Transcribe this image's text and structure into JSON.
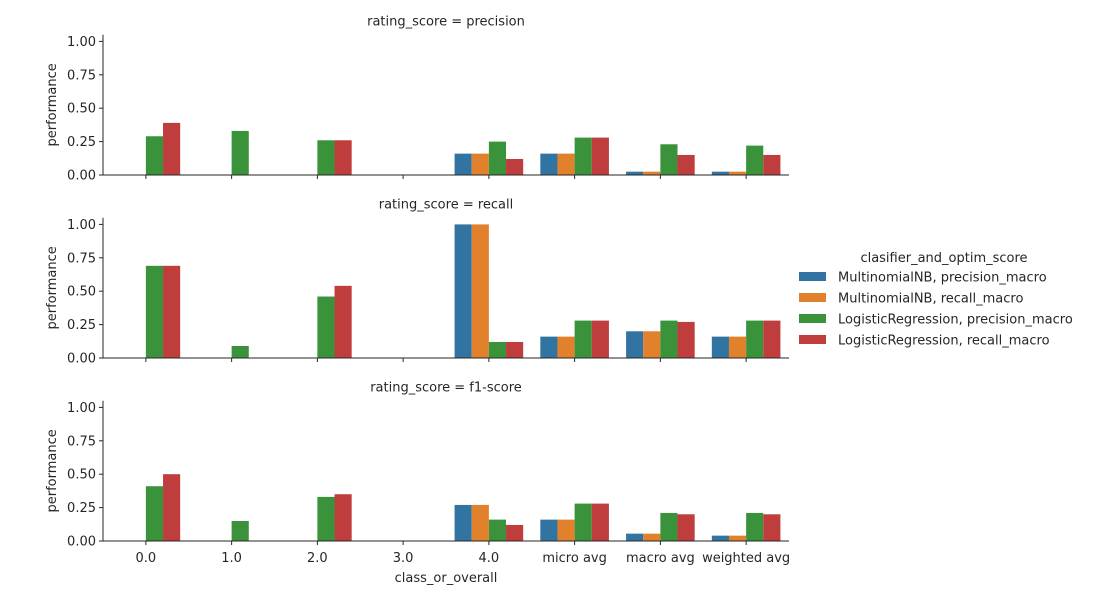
{
  "chart_data": [
    {
      "type": "bar",
      "title": "rating_score = precision",
      "ylabel": "performance",
      "ylim": [
        0,
        1.05
      ],
      "yticks": [
        "0.00",
        "0.25",
        "0.50",
        "0.75",
        "1.00"
      ],
      "series": [
        {
          "name": "MultinomialNB, precision_macro",
          "values": [
            0,
            0,
            0,
            0,
            0.16,
            0.16,
            0.025,
            0.025
          ]
        },
        {
          "name": "MultinomialNB, recall_macro",
          "values": [
            0,
            0,
            0,
            0,
            0.16,
            0.16,
            0.025,
            0.025
          ]
        },
        {
          "name": "LogisticRegression, precision_macro",
          "values": [
            0.29,
            0.33,
            0.26,
            0,
            0.25,
            0.28,
            0.23,
            0.22
          ]
        },
        {
          "name": "LogisticRegression, recall_macro",
          "values": [
            0.39,
            0,
            0.26,
            0,
            0.12,
            0.28,
            0.15,
            0.15
          ]
        }
      ]
    },
    {
      "type": "bar",
      "title": "rating_score = recall",
      "ylabel": "performance",
      "ylim": [
        0,
        1.05
      ],
      "yticks": [
        "0.00",
        "0.25",
        "0.50",
        "0.75",
        "1.00"
      ],
      "series": [
        {
          "name": "MultinomialNB, precision_macro",
          "values": [
            0,
            0,
            0,
            0,
            1.0,
            0.16,
            0.2,
            0.16
          ]
        },
        {
          "name": "MultinomialNB, recall_macro",
          "values": [
            0,
            0,
            0,
            0,
            1.0,
            0.16,
            0.2,
            0.16
          ]
        },
        {
          "name": "LogisticRegression, precision_macro",
          "values": [
            0.69,
            0.09,
            0.46,
            0,
            0.12,
            0.28,
            0.28,
            0.28
          ]
        },
        {
          "name": "LogisticRegression, recall_macro",
          "values": [
            0.69,
            0,
            0.54,
            0,
            0.12,
            0.28,
            0.27,
            0.28
          ]
        }
      ]
    },
    {
      "type": "bar",
      "title": "rating_score = f1-score",
      "ylabel": "performance",
      "xlabel": "class_or_overall",
      "ylim": [
        0,
        1.05
      ],
      "yticks": [
        "0.00",
        "0.25",
        "0.50",
        "0.75",
        "1.00"
      ],
      "categories": [
        "0.0",
        "1.0",
        "2.0",
        "3.0",
        "4.0",
        "micro avg",
        "macro avg",
        "weighted avg"
      ],
      "series": [
        {
          "name": "MultinomialNB, precision_macro",
          "values": [
            0,
            0,
            0,
            0,
            0.27,
            0.16,
            0.055,
            0.04
          ]
        },
        {
          "name": "MultinomialNB, recall_macro",
          "values": [
            0,
            0,
            0,
            0,
            0.27,
            0.16,
            0.055,
            0.04
          ]
        },
        {
          "name": "LogisticRegression, precision_macro",
          "values": [
            0.41,
            0.15,
            0.33,
            0,
            0.16,
            0.28,
            0.21,
            0.21
          ]
        },
        {
          "name": "LogisticRegression, recall_macro",
          "values": [
            0.5,
            0,
            0.35,
            0,
            0.12,
            0.28,
            0.2,
            0.2
          ]
        }
      ]
    }
  ],
  "legend": {
    "title": "clasifier_and_optim_score",
    "position": "right",
    "items": [
      {
        "label": "MultinomialNB, precision_macro",
        "color": "#3274a1"
      },
      {
        "label": "MultinomialNB, recall_macro",
        "color": "#e1812c"
      },
      {
        "label": "LogisticRegression, precision_macro",
        "color": "#3a923a"
      },
      {
        "label": "LogisticRegression, recall_macro",
        "color": "#c03d3e"
      }
    ]
  },
  "colors": [
    "#3274a1",
    "#e1812c",
    "#3a923a",
    "#c03d3e"
  ]
}
